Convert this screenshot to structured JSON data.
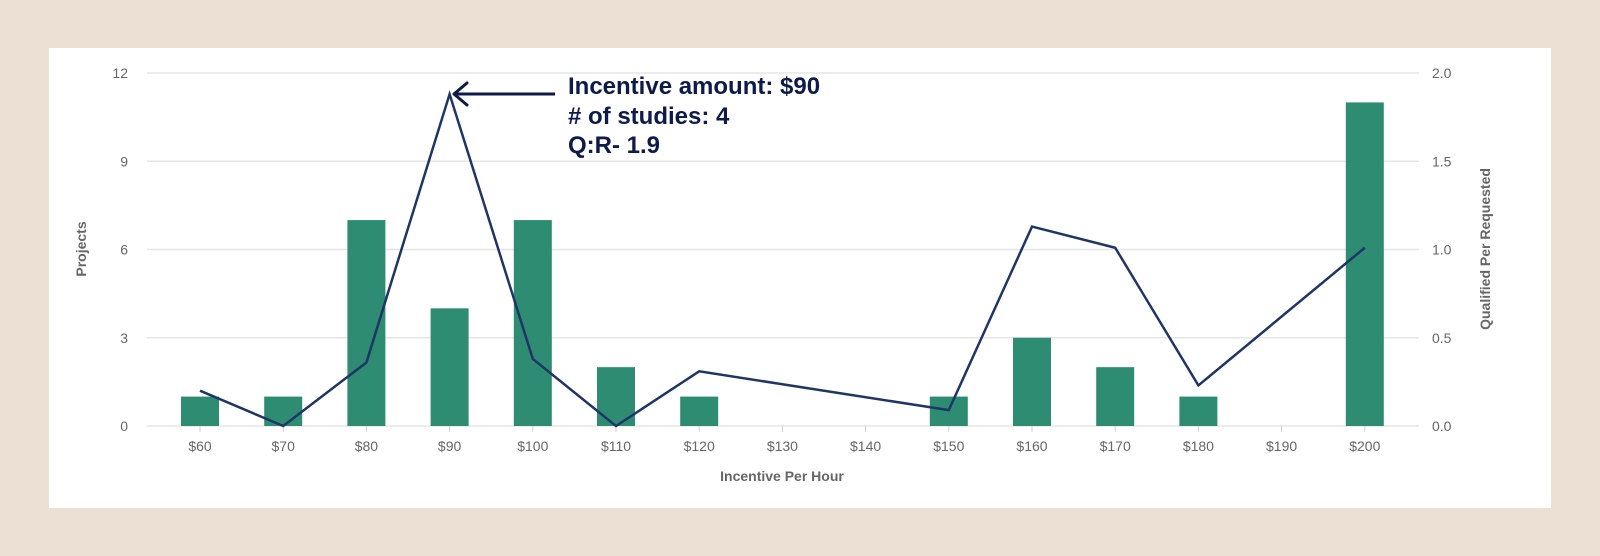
{
  "chart_data": {
    "type": "bar",
    "title": "",
    "xlabel": "Incentive Per Hour",
    "ylabel": "Projects",
    "y2label": "Qualified Per Requested",
    "categories": [
      "$60",
      "$70",
      "$80",
      "$90",
      "$100",
      "$110",
      "$120",
      "$130",
      "$140",
      "$150",
      "$160",
      "$170",
      "$180",
      "$190",
      "$200"
    ],
    "series": [
      {
        "name": "Projects",
        "type": "bar",
        "axis": "left",
        "color": "#2e8c72",
        "values": [
          1,
          1,
          7,
          4,
          7,
          2,
          1,
          null,
          null,
          1,
          3,
          2,
          1,
          null,
          11
        ]
      },
      {
        "name": "Qualified Per Requested",
        "type": "line",
        "axis": "right",
        "color": "#1f3566",
        "values": [
          0.2,
          0.0,
          0.36,
          1.88,
          0.38,
          0.0,
          0.31,
          null,
          null,
          0.09,
          1.13,
          1.01,
          0.23,
          null,
          1.01
        ]
      }
    ],
    "ylim": [
      0,
      12
    ],
    "yticks": [
      "0",
      "3",
      "6",
      "9",
      "12"
    ],
    "y2lim": [
      0,
      2.0
    ],
    "y2ticks": [
      "0.0",
      "0.5",
      "1.0",
      "1.5",
      "2.0"
    ],
    "grid": true,
    "legend": "none",
    "annotations": [
      {
        "target": "$90",
        "lines": [
          "Incentive amount: $90",
          "# of studies: 4",
          "Q:R- 1.9"
        ]
      }
    ]
  },
  "annotation": {
    "line1": "Incentive amount: $90",
    "line2": "# of studies: 4",
    "line3": "Q:R- 1.9"
  },
  "colors": {
    "background": "#ece0d5",
    "card": "#ffffff",
    "bar": "#2e8c72",
    "line": "#1f3566",
    "annotation_text": "#0d1a4a",
    "grid": "#e6e6e6",
    "tick_text": "#666666"
  }
}
